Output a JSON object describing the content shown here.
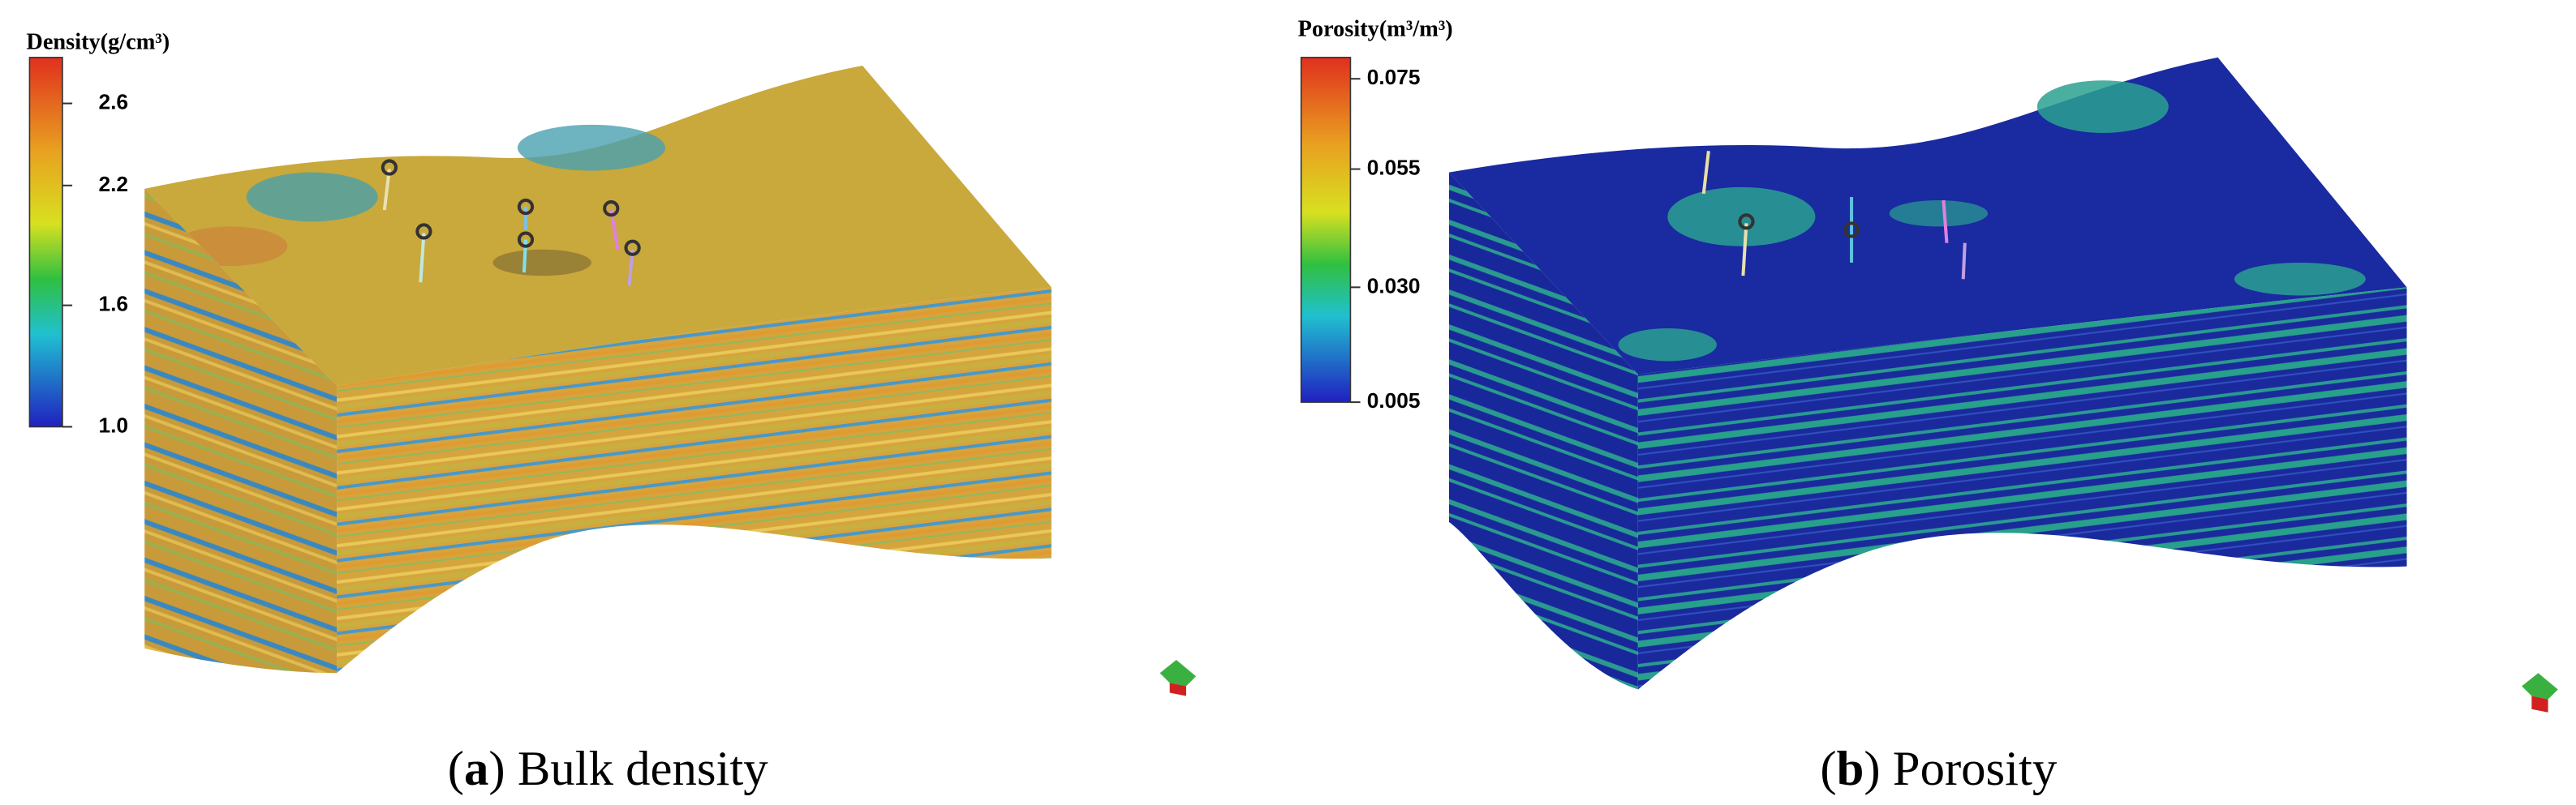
{
  "panels": [
    {
      "colorbar": {
        "title": "Density(g/cm³)",
        "ticks": [
          "2.6",
          "2.2",
          "1.6",
          "1.0"
        ]
      },
      "caption": {
        "open": "(",
        "label": "a",
        "close": ")",
        "text": " Bulk density"
      }
    },
    {
      "colorbar": {
        "title": "Porosity(m³/m³)",
        "ticks": [
          "0.075",
          "0.055",
          "0.030",
          "0.005"
        ]
      },
      "caption": {
        "open": "(",
        "label": "b",
        "close": ")",
        "text": " Porosity"
      }
    }
  ]
}
